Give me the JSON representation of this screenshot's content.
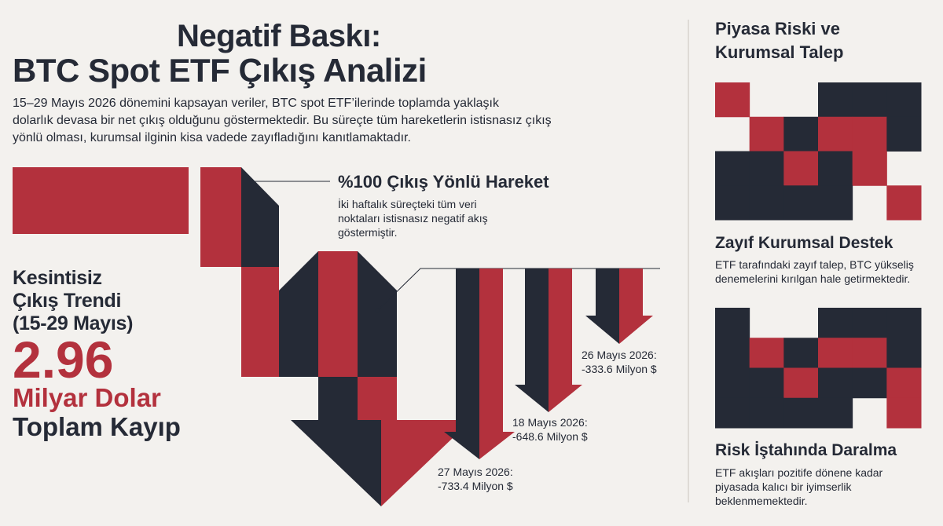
{
  "header": {
    "title_lines": [
      "Negatif Baskı:",
      "BTC Spot ETF Çıkış Analizi"
    ],
    "intro_lines": [
      "15–29 Mayıs 2026 dönemini kapsayan veriler, BTC spot ETF’ilerinde toplamda yaklaşık",
      "dolarlık devasa bir net çıkış olduğunu göstermektedir. Bu süreçte tüm hareketlerin istisnasız çıkış",
      "yönlü olması, kurumsal ilginin kisa vadede zayıfladığını kanıtlamaktadır."
    ]
  },
  "callout": {
    "title": "%100 Çıkış Yönlü Hareket",
    "lines": [
      "İki haftalık süreçteki tüm veri",
      "noktaları istisnasız negatif akış",
      "göstermiştir."
    ]
  },
  "summary": {
    "lines": [
      "Kesintisiz",
      "Çıkış Trendi",
      "(15-29 Mayıs)"
    ],
    "amount": "2.96",
    "unit": "Milyar Dolar",
    "caption": "Toplam Kayıp"
  },
  "flows": [
    {
      "date": "27 Mayıs 2026:",
      "amount": "-733.4 Milyon $"
    },
    {
      "date": "18 Mayıs 2026:",
      "amount": "-648.6 Milyon $"
    },
    {
      "date": "26 Mayıs 2026:",
      "amount": "-333.6 Milyon $"
    }
  ],
  "sidebar": {
    "title_lines": [
      "Piyasa Riski ve",
      "Kurumsal Talep"
    ],
    "sections": [
      {
        "title": "Zayıf Kurumsal Destek",
        "lines": [
          "ETF tarafındaki zayıf talep, BTC yükseliş",
          "denemelerini kırılgan hale getirmektedir."
        ]
      },
      {
        "title": "Risk İştahında Daralma",
        "lines": [
          "ETF akışları pozitife dönene kadar",
          "piyasada kalıcı bir iyimserlik",
          "beklenmemektedir."
        ]
      }
    ]
  }
}
